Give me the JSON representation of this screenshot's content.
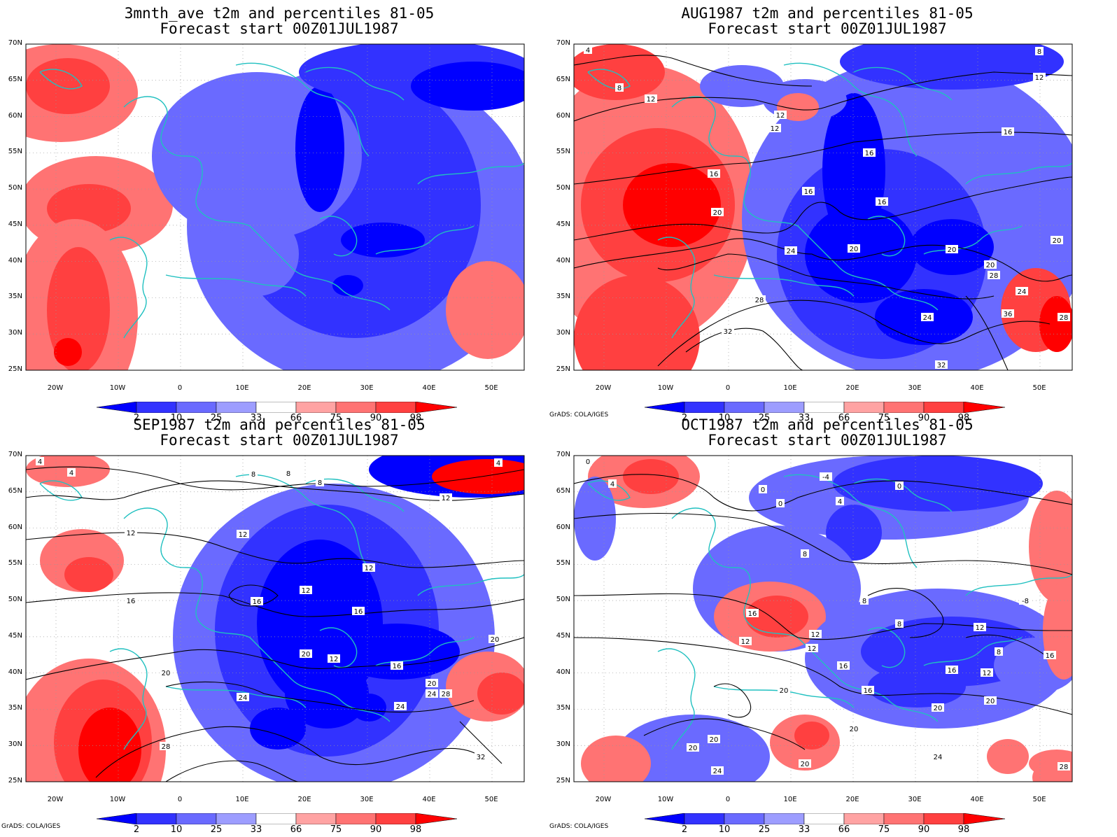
{
  "panels": [
    {
      "title": "3mnth_ave t2m and percentiles 81-05",
      "subtitle": "Forecast start 00Z01JUL1987",
      "credit": ""
    },
    {
      "title": "AUG1987 t2m and percentiles 81-05",
      "subtitle": "Forecast start 00Z01JUL1987",
      "credit": "GrADS: COLA/IGES"
    },
    {
      "title": "SEP1987 t2m and percentiles 81-05",
      "subtitle": "Forecast start 00Z01JUL1987",
      "credit": "GrADS: COLA/IGES"
    },
    {
      "title": "OCT1987 t2m and percentiles 81-05",
      "subtitle": "Forecast start 00Z01JUL1987",
      "credit": "GrADS: COLA/IGES"
    }
  ],
  "lat_labels": [
    "70N",
    "65N",
    "60N",
    "55N",
    "50N",
    "45N",
    "40N",
    "35N",
    "30N",
    "25N"
  ],
  "lon_labels": [
    "20W",
    "10W",
    "0",
    "10E",
    "20E",
    "30E",
    "40E",
    "50E"
  ],
  "colorbar": {
    "labels": [
      "2",
      "10",
      "25",
      "33",
      "66",
      "75",
      "90",
      "98"
    ],
    "colors": [
      "#0000ff",
      "#3232ff",
      "#6a6aff",
      "#9d9dff",
      "#ffffff",
      "#ffa3a3",
      "#ff7373",
      "#ff4040",
      "#ff0000"
    ]
  },
  "colors": {
    "coastline": "#20c0c0",
    "contour": "#000000",
    "grid": "#999999"
  },
  "contour_labels": [
    [],
    [
      "4",
      "8",
      "12",
      "12",
      "12",
      "12",
      "16",
      "16",
      "16",
      "16",
      "16",
      "20",
      "20",
      "20",
      "20",
      "20",
      "24",
      "24",
      "28",
      "28",
      "28",
      "32",
      "32",
      "36",
      "24",
      "8"
    ],
    [
      "4",
      "4",
      "8",
      "8",
      "12",
      "12",
      "12",
      "12",
      "12",
      "16",
      "16",
      "16",
      "20",
      "20",
      "20",
      "24",
      "24",
      "28",
      "28",
      "32",
      "24",
      "8",
      "4",
      "16",
      "20",
      "12"
    ],
    [
      "0",
      "4",
      "0",
      "0",
      "4",
      "-4",
      "0",
      "8",
      "8",
      "8",
      "12",
      "12",
      "12",
      "12",
      "16",
      "16",
      "16",
      "16",
      "20",
      "20",
      "20",
      "20",
      "20",
      "24",
      "24",
      "12",
      "8",
      "16",
      "20",
      "20",
      "28",
      "-8"
    ]
  ]
}
